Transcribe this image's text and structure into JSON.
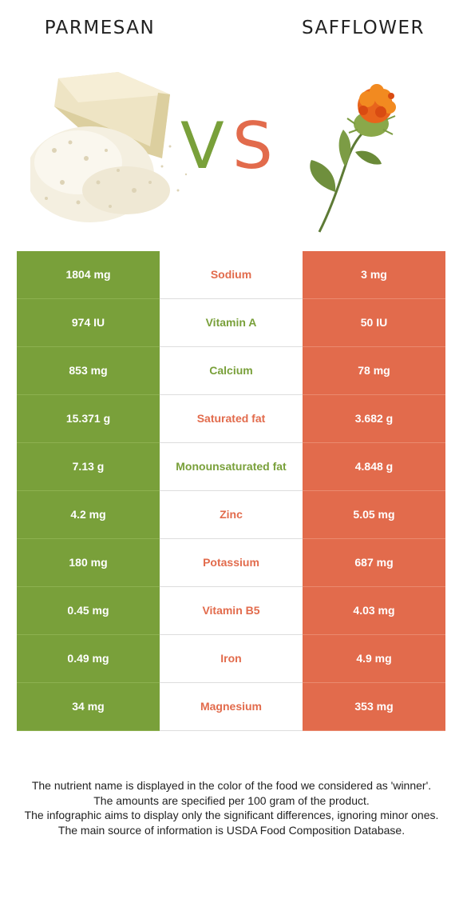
{
  "header": {
    "left_title": "PARMESAN",
    "right_title": "SAFFLOWER",
    "vs_v": "V",
    "vs_s": "S"
  },
  "colors": {
    "winner_left": "#79a03a",
    "winner_right": "#e26b4c"
  },
  "rows": [
    {
      "left": "1804 mg",
      "nutrient": "Sodium",
      "right": "3 mg",
      "winner": "right"
    },
    {
      "left": "974 IU",
      "nutrient": "Vitamin A",
      "right": "50 IU",
      "winner": "left"
    },
    {
      "left": "853 mg",
      "nutrient": "Calcium",
      "right": "78 mg",
      "winner": "left"
    },
    {
      "left": "15.371 g",
      "nutrient": "Saturated fat",
      "right": "3.682 g",
      "winner": "right"
    },
    {
      "left": "7.13 g",
      "nutrient": "Monounsaturated fat",
      "right": "4.848 g",
      "winner": "left"
    },
    {
      "left": "4.2 mg",
      "nutrient": "Zinc",
      "right": "5.05 mg",
      "winner": "right"
    },
    {
      "left": "180 mg",
      "nutrient": "Potassium",
      "right": "687 mg",
      "winner": "right"
    },
    {
      "left": "0.45 mg",
      "nutrient": "Vitamin B5",
      "right": "4.03 mg",
      "winner": "right"
    },
    {
      "left": "0.49 mg",
      "nutrient": "Iron",
      "right": "4.9 mg",
      "winner": "right"
    },
    {
      "left": "34 mg",
      "nutrient": "Magnesium",
      "right": "353 mg",
      "winner": "right"
    }
  ],
  "footer": {
    "line1": "The nutrient name is displayed in the color of the food we considered as 'winner'.",
    "line2": "The amounts are specified per 100 gram of the product.",
    "line3": "The infographic aims to display only the significant differences, ignoring minor ones.",
    "line4": "The main source of information is USDA Food Composition Database."
  }
}
